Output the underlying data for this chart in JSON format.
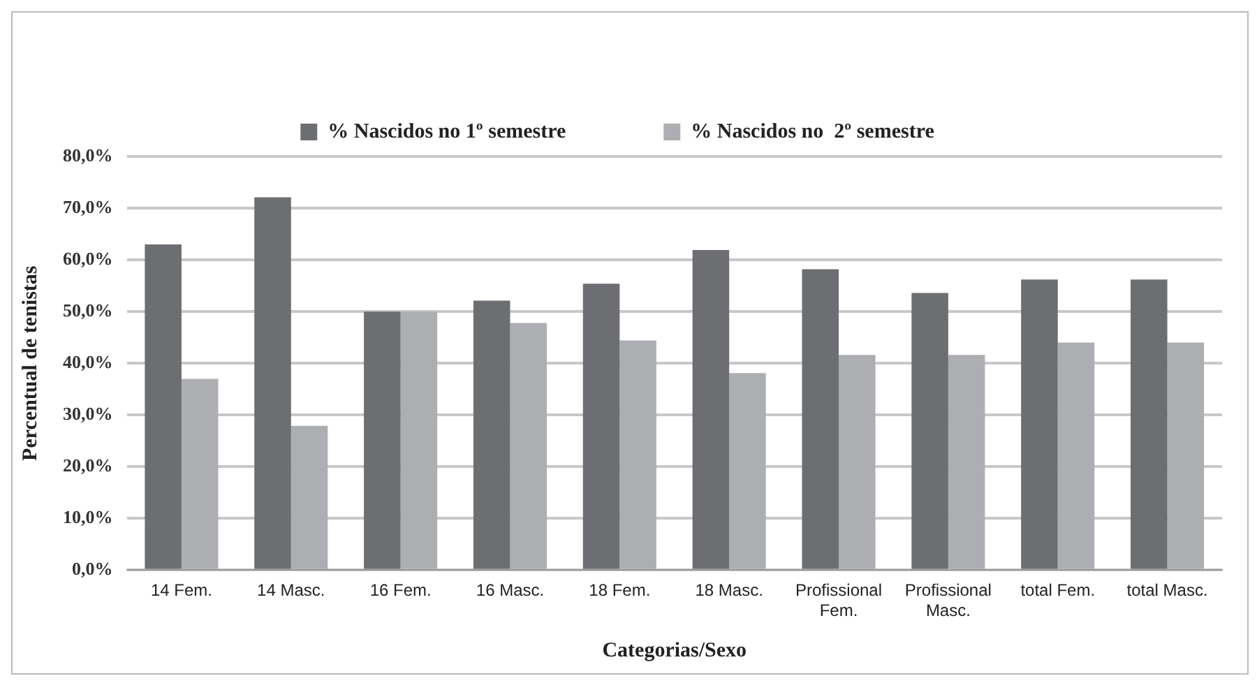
{
  "chart_data": {
    "type": "bar",
    "xlabel": "Categorias/Sexo",
    "ylabel": "Percentual de tenistas",
    "categories": [
      "14 Fem.",
      "14 Masc.",
      "16 Fem.",
      "16 Masc.",
      "18 Fem.",
      "18 Masc.",
      "Profissional Fem.",
      "Profissional Masc.",
      "total Fem.",
      "total Masc."
    ],
    "series": [
      {
        "name": "% Nascidos no 1º semestre",
        "color": "#6d6e71",
        "values": [
          63,
          72.1,
          50,
          52.1,
          55.4,
          61.9,
          58.2,
          53.6,
          56.2,
          56.2
        ]
      },
      {
        "name": "% Nascidos no  2º semestre",
        "color": "#adaeb1",
        "values": [
          37,
          27.9,
          50,
          47.8,
          44.4,
          38.1,
          41.6,
          41.6,
          44,
          44
        ]
      }
    ],
    "ylim": [
      0,
      80
    ],
    "yticks": [
      {
        "value": 0,
        "label": "0,0%"
      },
      {
        "value": 10,
        "label": "10,0%"
      },
      {
        "value": 20,
        "label": "20,0%"
      },
      {
        "value": 30,
        "label": "30,0%"
      },
      {
        "value": 40,
        "label": "40,0%"
      },
      {
        "value": 50,
        "label": "50,0%"
      },
      {
        "value": 60,
        "label": "60,0%"
      },
      {
        "value": 70,
        "label": "70,0%"
      },
      {
        "value": 80,
        "label": "80,0%"
      }
    ],
    "grid": "y",
    "legend": "top"
  }
}
